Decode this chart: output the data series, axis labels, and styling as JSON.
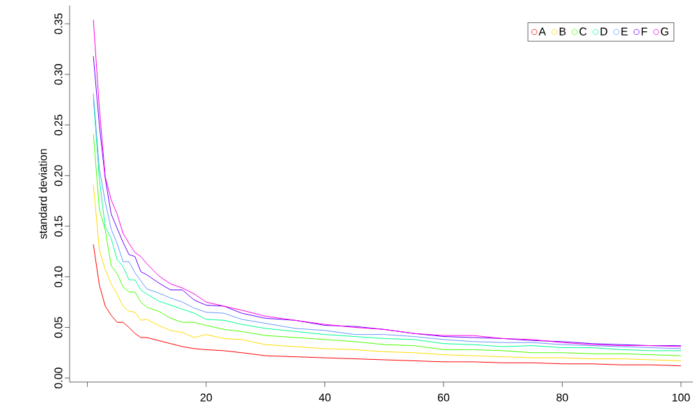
{
  "chart_data": {
    "type": "line",
    "ylabel": "standard deviation",
    "x": [
      1,
      2,
      3,
      4,
      5,
      6,
      7,
      8,
      9,
      10,
      12,
      14,
      16,
      18,
      20,
      23,
      26,
      30,
      35,
      40,
      45,
      50,
      55,
      60,
      65,
      70,
      75,
      80,
      85,
      90,
      95,
      100
    ],
    "series": [
      {
        "name": "A",
        "color": "#ff0000",
        "values": [
          0.132,
          0.092,
          0.071,
          0.062,
          0.055,
          0.055,
          0.05,
          0.044,
          0.04,
          0.04,
          0.037,
          0.034,
          0.031,
          0.029,
          0.028,
          0.027,
          0.025,
          0.022,
          0.021,
          0.02,
          0.019,
          0.018,
          0.017,
          0.016,
          0.016,
          0.015,
          0.015,
          0.014,
          0.014,
          0.013,
          0.013,
          0.012
        ]
      },
      {
        "name": "B",
        "color": "#ffdb00",
        "values": [
          0.191,
          0.127,
          0.107,
          0.093,
          0.083,
          0.071,
          0.066,
          0.065,
          0.057,
          0.058,
          0.052,
          0.047,
          0.045,
          0.04,
          0.043,
          0.039,
          0.038,
          0.033,
          0.031,
          0.029,
          0.028,
          0.026,
          0.025,
          0.023,
          0.022,
          0.021,
          0.02,
          0.02,
          0.019,
          0.019,
          0.018,
          0.017
        ]
      },
      {
        "name": "C",
        "color": "#49ff00",
        "values": [
          0.241,
          0.167,
          0.146,
          0.111,
          0.103,
          0.09,
          0.085,
          0.085,
          0.075,
          0.07,
          0.066,
          0.059,
          0.055,
          0.055,
          0.052,
          0.048,
          0.046,
          0.042,
          0.04,
          0.038,
          0.036,
          0.033,
          0.032,
          0.028,
          0.028,
          0.027,
          0.025,
          0.025,
          0.024,
          0.024,
          0.023,
          0.022
        ]
      },
      {
        "name": "D",
        "color": "#00ff92",
        "values": [
          0.276,
          0.197,
          0.149,
          0.138,
          0.117,
          0.11,
          0.097,
          0.097,
          0.087,
          0.083,
          0.076,
          0.072,
          0.068,
          0.064,
          0.058,
          0.057,
          0.053,
          0.049,
          0.046,
          0.043,
          0.041,
          0.039,
          0.038,
          0.034,
          0.033,
          0.031,
          0.032,
          0.03,
          0.03,
          0.028,
          0.027,
          0.027
        ]
      },
      {
        "name": "E",
        "color": "#6699ff",
        "values": [
          0.281,
          0.207,
          0.174,
          0.147,
          0.133,
          0.115,
          0.115,
          0.104,
          0.096,
          0.088,
          0.084,
          0.079,
          0.075,
          0.069,
          0.065,
          0.064,
          0.058,
          0.054,
          0.049,
          0.047,
          0.043,
          0.043,
          0.041,
          0.038,
          0.036,
          0.035,
          0.035,
          0.033,
          0.032,
          0.031,
          0.03,
          0.029
        ]
      },
      {
        "name": "F",
        "color": "#6600ff",
        "values": [
          0.318,
          0.25,
          0.197,
          0.162,
          0.148,
          0.134,
          0.122,
          0.12,
          0.105,
          0.102,
          0.094,
          0.087,
          0.087,
          0.077,
          0.072,
          0.071,
          0.064,
          0.059,
          0.057,
          0.052,
          0.051,
          0.048,
          0.044,
          0.041,
          0.04,
          0.039,
          0.037,
          0.036,
          0.034,
          0.033,
          0.032,
          0.032
        ]
      },
      {
        "name": "G",
        "color": "#ff00e6",
        "values": [
          0.354,
          0.267,
          0.199,
          0.176,
          0.162,
          0.143,
          0.133,
          0.124,
          0.12,
          0.113,
          0.101,
          0.093,
          0.089,
          0.083,
          0.075,
          0.071,
          0.067,
          0.061,
          0.057,
          0.053,
          0.05,
          0.048,
          0.044,
          0.042,
          0.042,
          0.039,
          0.038,
          0.035,
          0.033,
          0.032,
          0.032,
          0.031
        ]
      }
    ],
    "xlim": [
      -3,
      102
    ],
    "ylim": [
      -0.004,
      0.368
    ],
    "xticks": [
      {
        "value": 0,
        "label": null
      },
      20,
      40,
      60,
      80,
      100
    ],
    "yticks": [
      {
        "value": 0,
        "label": "0.00"
      },
      {
        "value": 0.05,
        "label": "0.05"
      },
      {
        "value": 0.1,
        "label": "0.10"
      },
      {
        "value": 0.15,
        "label": "0.15"
      },
      {
        "value": 0.2,
        "label": "0.20"
      },
      {
        "value": 0.25,
        "label": "0.25"
      },
      {
        "value": 0.3,
        "label": "0.30"
      },
      {
        "value": 0.35,
        "label": "0.35"
      }
    ],
    "legend": "top right"
  }
}
